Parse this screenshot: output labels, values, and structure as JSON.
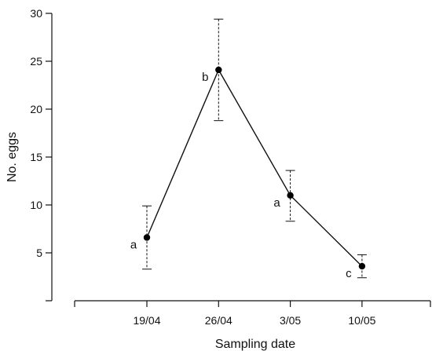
{
  "chart_data": {
    "type": "line",
    "xlabel": "Sampling date",
    "ylabel": "No. eggs",
    "categories": [
      "19/04",
      "26/04",
      "3/05",
      "10/05"
    ],
    "ylim": [
      0,
      30
    ],
    "yticks": [
      5,
      10,
      15,
      20,
      25,
      30
    ],
    "series": [
      {
        "values": [
          6.6,
          24.1,
          11.0,
          3.6
        ],
        "err_low": [
          3.3,
          18.8,
          8.3,
          2.4
        ],
        "err_high": [
          9.9,
          29.4,
          13.6,
          4.8
        ],
        "annotations": [
          "a",
          "b",
          "a",
          "c"
        ]
      }
    ],
    "grid": false,
    "colors": {
      "line": "#111111",
      "marker": "#000000"
    }
  }
}
